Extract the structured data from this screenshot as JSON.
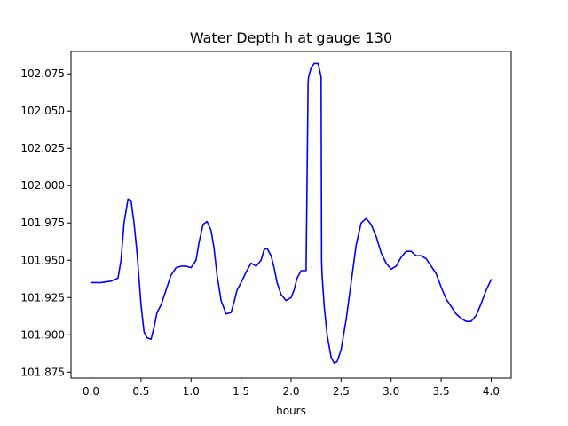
{
  "chart_data": {
    "type": "line",
    "title": "Water Depth h at gauge 130",
    "xlabel": "hours",
    "ylabel": "",
    "xlim": [
      -0.2,
      4.2
    ],
    "ylim": [
      101.871,
      102.09
    ],
    "grid": false,
    "xticks": [
      0.0,
      0.5,
      1.0,
      1.5,
      2.0,
      2.5,
      3.0,
      3.5,
      4.0
    ],
    "xtick_labels": [
      "0.0",
      "0.5",
      "1.0",
      "1.5",
      "2.0",
      "2.5",
      "3.0",
      "3.5",
      "4.0"
    ],
    "yticks": [
      101.875,
      101.9,
      101.925,
      101.95,
      101.975,
      102.0,
      102.025,
      102.05,
      102.075
    ],
    "ytick_labels": [
      "101.875",
      "101.900",
      "101.925",
      "101.950",
      "101.975",
      "102.000",
      "102.025",
      "102.050",
      "102.075"
    ],
    "series": [
      {
        "color": "#0000ff",
        "x": [
          0.0,
          0.1,
          0.2,
          0.27,
          0.3,
          0.33,
          0.37,
          0.4,
          0.43,
          0.46,
          0.5,
          0.53,
          0.56,
          0.6,
          0.63,
          0.66,
          0.7,
          0.75,
          0.8,
          0.85,
          0.9,
          0.95,
          1.0,
          1.05,
          1.08,
          1.12,
          1.16,
          1.2,
          1.23,
          1.26,
          1.3,
          1.35,
          1.4,
          1.43,
          1.46,
          1.5,
          1.55,
          1.6,
          1.65,
          1.7,
          1.73,
          1.76,
          1.8,
          1.83,
          1.86,
          1.9,
          1.95,
          2.0,
          2.03,
          2.06,
          2.1,
          2.15,
          2.17,
          2.175,
          2.2,
          2.23,
          2.27,
          2.3,
          2.305,
          2.31,
          2.33,
          2.36,
          2.4,
          2.43,
          2.46,
          2.5,
          2.55,
          2.6,
          2.65,
          2.7,
          2.75,
          2.8,
          2.85,
          2.9,
          2.95,
          3.0,
          3.05,
          3.1,
          3.15,
          3.2,
          3.25,
          3.3,
          3.35,
          3.4,
          3.45,
          3.5,
          3.55,
          3.6,
          3.65,
          3.7,
          3.75,
          3.8,
          3.85,
          3.9,
          3.95,
          4.0
        ],
        "y": [
          101.935,
          101.935,
          101.936,
          101.938,
          101.95,
          101.975,
          101.991,
          101.99,
          101.975,
          101.955,
          101.92,
          101.902,
          101.898,
          101.897,
          101.905,
          101.915,
          101.92,
          101.93,
          101.94,
          101.945,
          101.946,
          101.946,
          101.945,
          101.95,
          101.962,
          101.974,
          101.976,
          101.97,
          101.958,
          101.94,
          101.923,
          101.914,
          101.915,
          101.922,
          101.93,
          101.935,
          101.942,
          101.948,
          101.946,
          101.95,
          101.957,
          101.958,
          101.953,
          101.945,
          101.935,
          101.927,
          101.923,
          101.925,
          101.93,
          101.938,
          101.943,
          101.943,
          102.069,
          102.073,
          102.079,
          102.082,
          102.082,
          102.073,
          101.949,
          101.94,
          101.92,
          101.9,
          101.885,
          101.881,
          101.882,
          101.89,
          101.91,
          101.935,
          101.96,
          101.975,
          101.978,
          101.974,
          101.966,
          101.955,
          101.948,
          101.944,
          101.946,
          101.952,
          101.956,
          101.956,
          101.953,
          101.953,
          101.951,
          101.946,
          101.941,
          101.932,
          101.924,
          101.919,
          101.914,
          101.911,
          101.909,
          101.909,
          101.913,
          101.921,
          101.93,
          101.937
        ]
      }
    ]
  }
}
